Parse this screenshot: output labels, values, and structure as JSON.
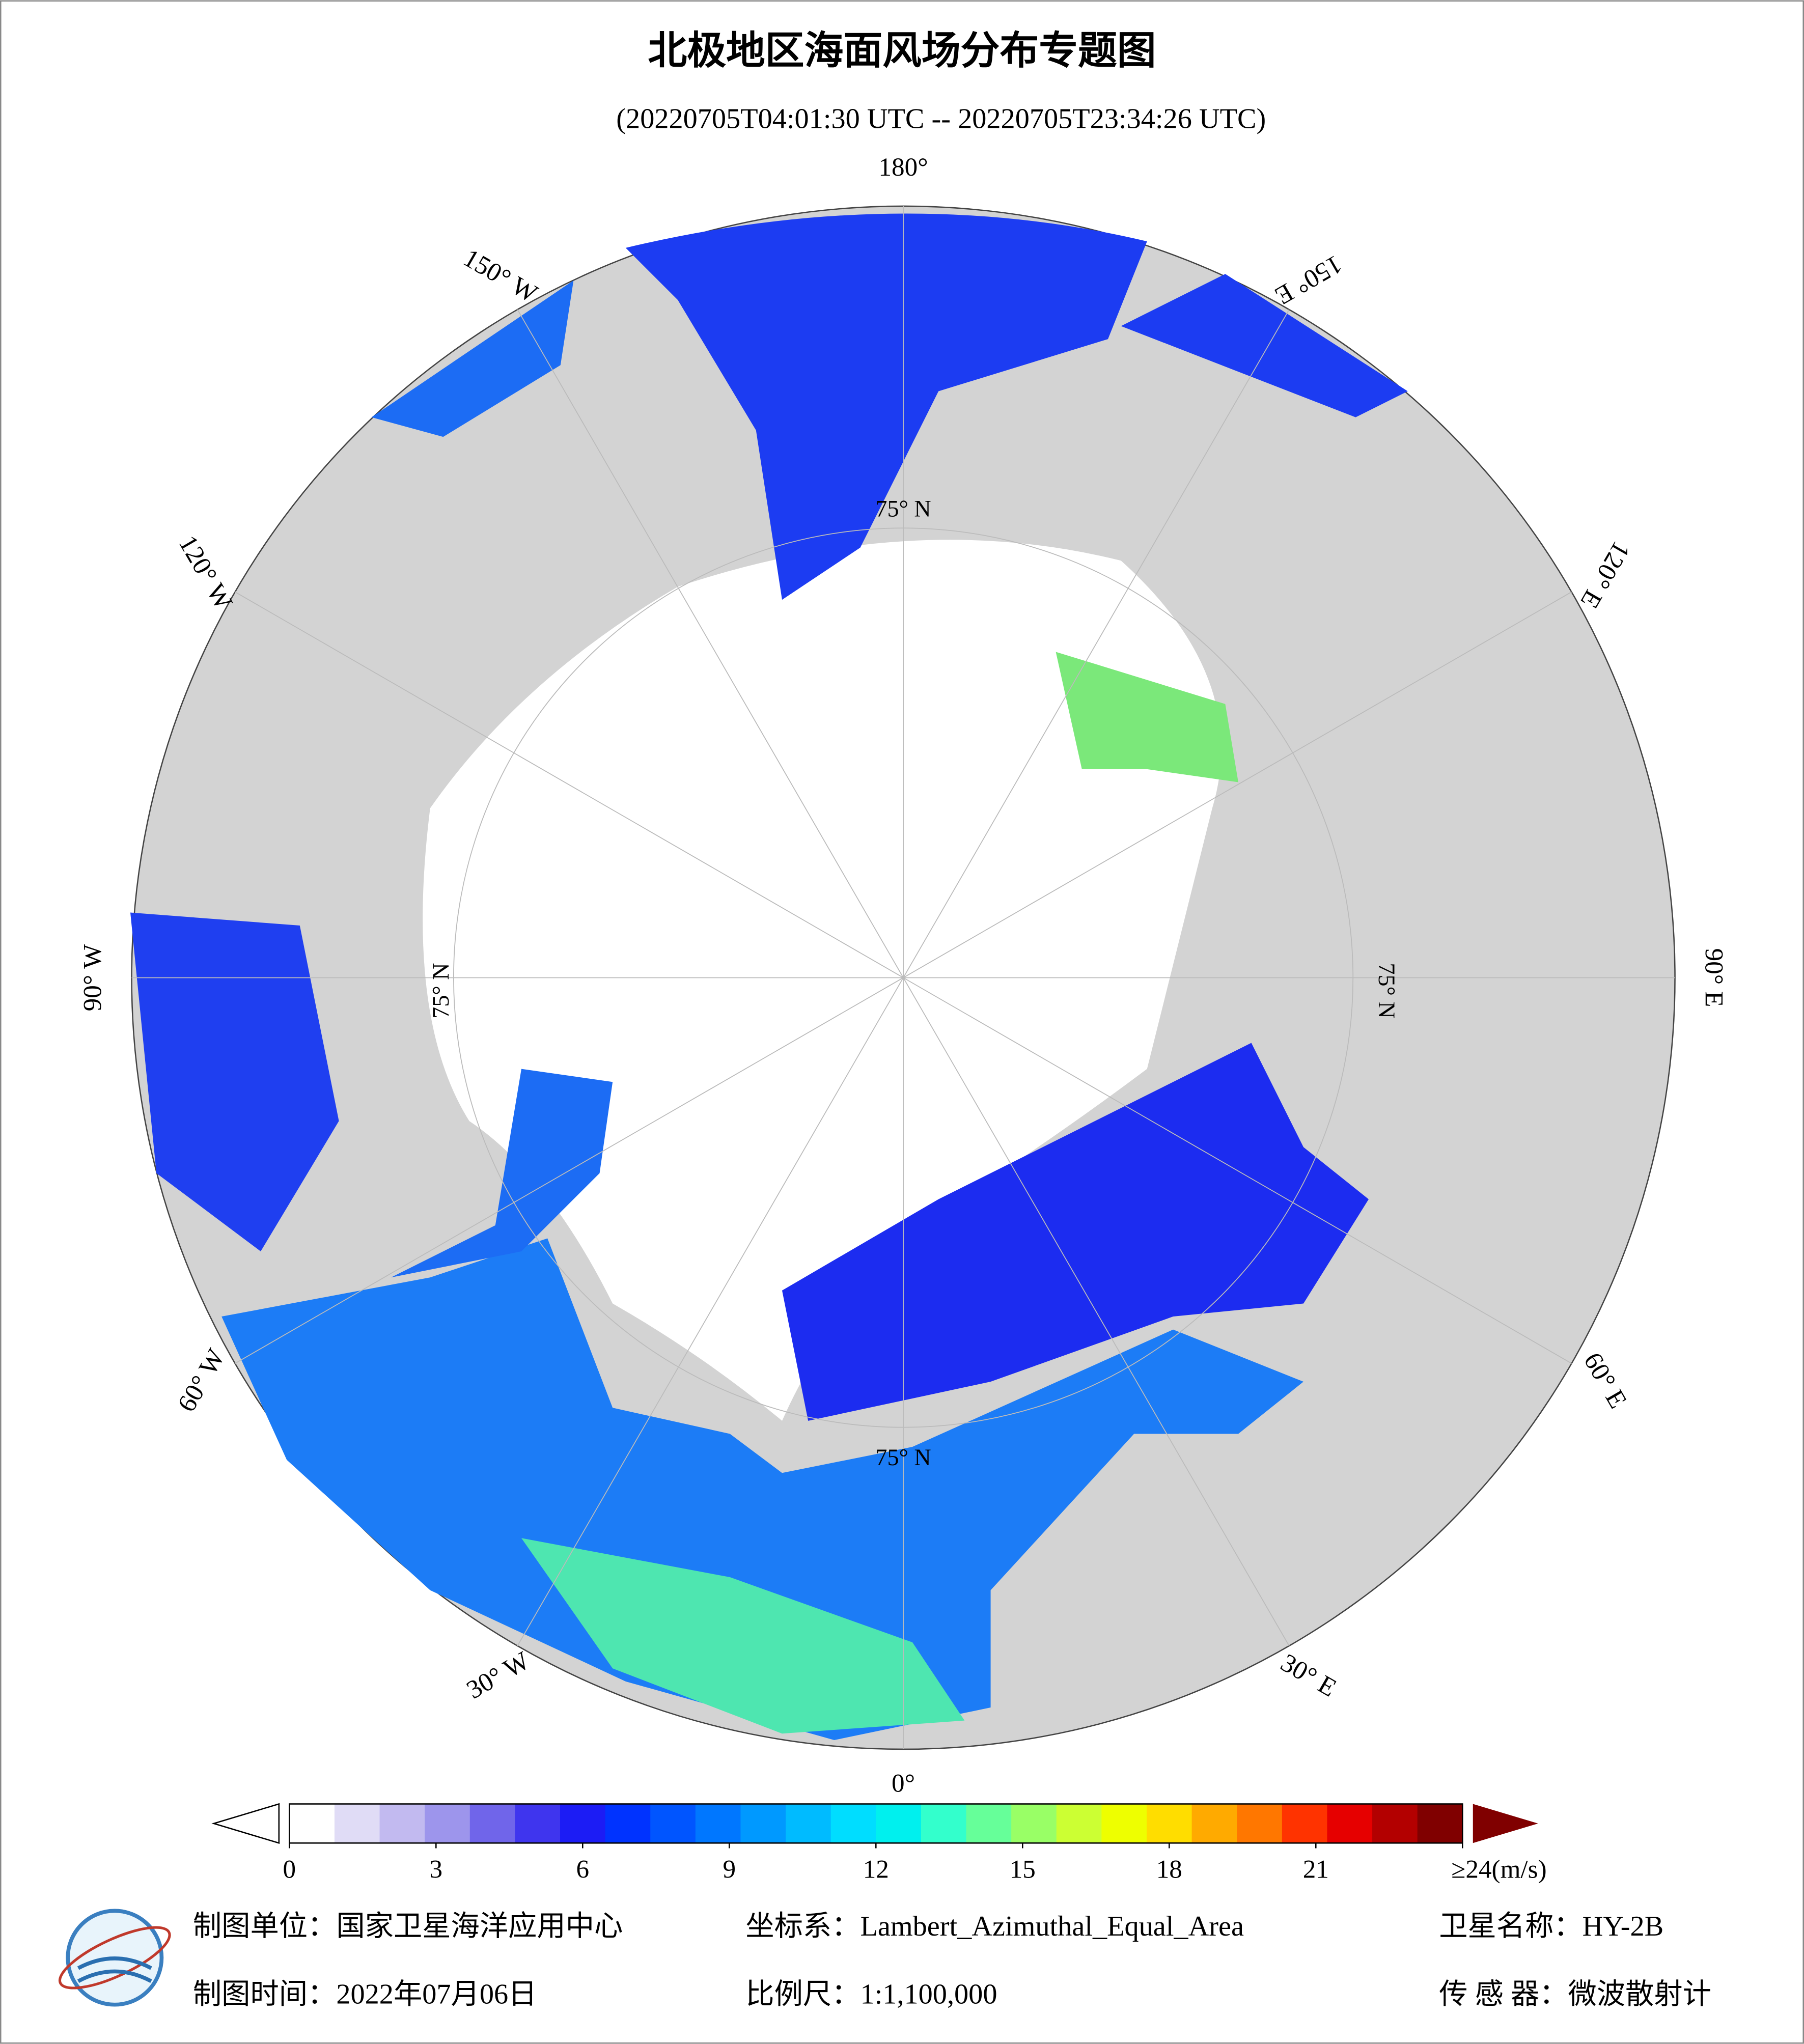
{
  "header": {
    "title": "北极地区海面风场分布专题图",
    "subtitle": "(20220705T04:01:30 UTC -- 20220705T23:34:26 UTC)"
  },
  "map": {
    "longitude_labels": [
      "180°",
      "150° W",
      "120° W",
      "90° W",
      "60° W",
      "30° W",
      "0°",
      "30° E",
      "60° E",
      "90° E",
      "120° E",
      "150° E"
    ],
    "latitude_labels": [
      "75° N",
      "75° N",
      "75° N",
      "75° N"
    ]
  },
  "colorbar": {
    "lim": [
      0,
      24
    ],
    "ticks": [
      0,
      3,
      6,
      9,
      12,
      15,
      18,
      21,
      {
        "value": 24,
        "label": "≥24(m/s)"
      }
    ],
    "colors": [
      "#ffffff",
      "#e0dcf6",
      "#c2baf0",
      "#9d95ec",
      "#7065ea",
      "#3f35ee",
      "#1c1cf5",
      "#0033ff",
      "#0055ff",
      "#0077ff",
      "#0099ff",
      "#00bbff",
      "#00ddff",
      "#00f0ee",
      "#33ffcc",
      "#66ff99",
      "#99ff66",
      "#ccff33",
      "#eeff00",
      "#ffdd00",
      "#ffaa00",
      "#ff7700",
      "#ff3300",
      "#e60000",
      "#b30000",
      "#800000"
    ]
  },
  "footer": {
    "unit": "制图单位：国家卫星海洋应用中心",
    "crs": "坐标系：Lambert_Azimuthal_Equal_Area",
    "satellite": "卫星名称：HY-2B",
    "date": "制图时间：2022年07月06日",
    "scale": "比例尺：1:1,100,000",
    "sensor": "传 感 器：微波散射计"
  }
}
